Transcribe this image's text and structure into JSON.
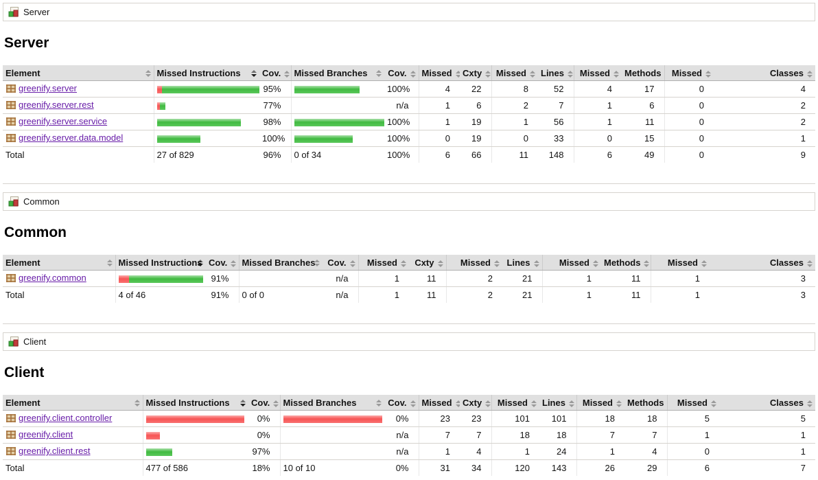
{
  "colors": {
    "link": "#681da8",
    "bar_red": "#f75555",
    "bar_green": "#41ba41",
    "header_bg": "#e0e0e0"
  },
  "table": {
    "columns": [
      {
        "label": "Element",
        "sort": "inactive"
      },
      {
        "label": "Missed Instructions",
        "sort": "active-desc"
      },
      {
        "label": "Cov.",
        "sort": "inactive"
      },
      {
        "label": "Missed Branches",
        "sort": "inactive"
      },
      {
        "label": "Cov.",
        "sort": "inactive"
      },
      {
        "label": "Missed",
        "sort": "inactive"
      },
      {
        "label": "Cxty",
        "sort": "inactive"
      },
      {
        "label": "Missed",
        "sort": "inactive"
      },
      {
        "label": "Lines",
        "sort": "inactive"
      },
      {
        "label": "Missed",
        "sort": "inactive"
      },
      {
        "label": "Methods",
        "sort": "inactive"
      },
      {
        "label": "Missed",
        "sort": "inactive"
      },
      {
        "label": "Classes",
        "sort": "inactive"
      }
    ]
  },
  "sections": [
    {
      "breadcrumb": "Server",
      "title": "Server",
      "rows": [
        {
          "name": "greenify.server",
          "instr_bar": {
            "red": 7,
            "green": 146
          },
          "instr_cov": "95%",
          "branch_bar": {
            "green": 95
          },
          "branch_cov": "100%",
          "ctrs": [
            "4",
            "22",
            "8",
            "52",
            "4",
            "17",
            "0",
            "4"
          ]
        },
        {
          "name": "greenify.server.rest",
          "instr_bar": {
            "red": 4,
            "green": 8
          },
          "instr_cov": "77%",
          "branch_cov": "n/a",
          "ctrs": [
            "1",
            "6",
            "2",
            "7",
            "1",
            "6",
            "0",
            "2"
          ]
        },
        {
          "name": "greenify.server.service",
          "instr_bar": {
            "green": 122
          },
          "instr_cov": "98%",
          "branch_bar": {
            "green": 131
          },
          "branch_cov": "100%",
          "ctrs": [
            "1",
            "19",
            "1",
            "56",
            "1",
            "11",
            "0",
            "2"
          ]
        },
        {
          "name": "greenify.server.data.model",
          "instr_bar": {
            "green": 63
          },
          "instr_cov": "100%",
          "branch_bar": {
            "green": 85
          },
          "branch_cov": "100%",
          "ctrs": [
            "0",
            "19",
            "0",
            "33",
            "0",
            "15",
            "0",
            "1"
          ]
        }
      ],
      "total": {
        "label": "Total",
        "instr": "27 of 829",
        "instr_cov": "96%",
        "branch": "0 of 34",
        "branch_cov": "100%",
        "ctrs": [
          "6",
          "66",
          "11",
          "148",
          "6",
          "49",
          "0",
          "9"
        ]
      }
    },
    {
      "breadcrumb": "Common",
      "title": "Common",
      "rows": [
        {
          "name": "greenify.common",
          "instr_bar": {
            "red": 15,
            "green": 108
          },
          "instr_cov": "91%",
          "branch_cov": "n/a",
          "ctrs": [
            "1",
            "11",
            "2",
            "21",
            "1",
            "11",
            "1",
            "3"
          ]
        }
      ],
      "total": {
        "label": "Total",
        "instr": "4 of 46",
        "instr_cov": "91%",
        "branch": "0 of 0",
        "branch_cov": "n/a",
        "ctrs": [
          "1",
          "11",
          "2",
          "21",
          "1",
          "11",
          "1",
          "3"
        ]
      }
    },
    {
      "breadcrumb": "Client",
      "title": "Client",
      "rows": [
        {
          "name": "greenify.client.controller",
          "instr_bar": {
            "red": 143
          },
          "instr_cov": "0%",
          "branch_bar": {
            "red": 144
          },
          "branch_cov": "0%",
          "ctrs": [
            "23",
            "23",
            "101",
            "101",
            "18",
            "18",
            "5",
            "5"
          ]
        },
        {
          "name": "greenify.client",
          "instr_bar": {
            "red": 20
          },
          "instr_cov": "0%",
          "branch_cov": "n/a",
          "ctrs": [
            "7",
            "7",
            "18",
            "18",
            "7",
            "7",
            "1",
            "1"
          ]
        },
        {
          "name": "greenify.client.rest",
          "instr_bar": {
            "green": 38
          },
          "instr_cov": "97%",
          "branch_cov": "n/a",
          "ctrs": [
            "1",
            "4",
            "1",
            "24",
            "1",
            "4",
            "0",
            "1"
          ]
        }
      ],
      "total": {
        "label": "Total",
        "instr": "477 of 586",
        "instr_cov": "18%",
        "branch": "10 of 10",
        "branch_cov": "0%",
        "ctrs": [
          "31",
          "34",
          "120",
          "143",
          "26",
          "29",
          "6",
          "7"
        ]
      }
    }
  ]
}
